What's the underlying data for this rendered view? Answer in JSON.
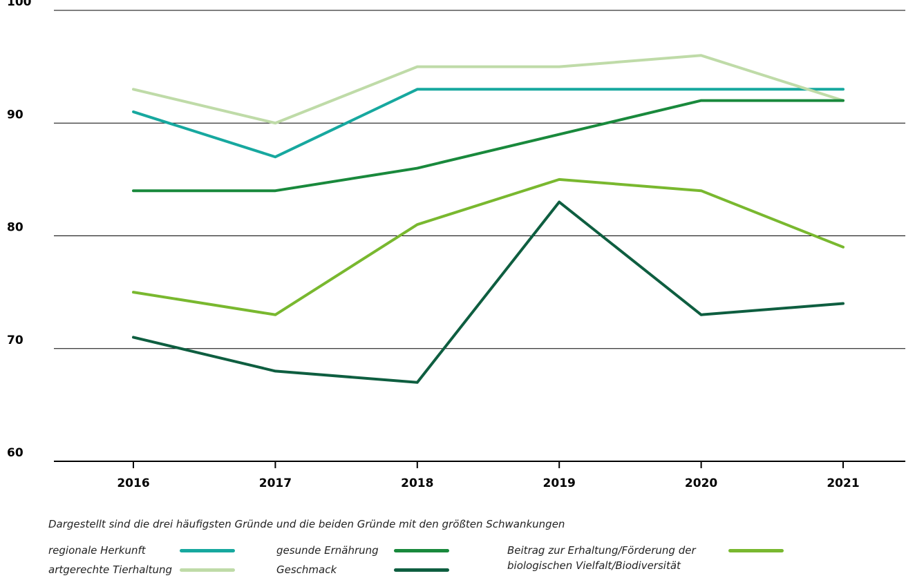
{
  "chart_data": {
    "type": "line",
    "categories": [
      "2016",
      "2017",
      "2018",
      "2019",
      "2020",
      "2021"
    ],
    "series": [
      {
        "name": "regionale Herkunft",
        "color": "#17a89f",
        "values": [
          91,
          87,
          93,
          93,
          93,
          93
        ]
      },
      {
        "name": "artgerechte Tierhaltung",
        "color": "#bfdba8",
        "values": [
          93,
          90,
          95,
          95,
          96,
          92
        ]
      },
      {
        "name": "gesunde Ernährung",
        "color": "#19893c",
        "values": [
          84,
          84,
          86,
          89,
          92,
          92
        ]
      },
      {
        "name": "Geschmack",
        "color": "#0e5e40",
        "values": [
          71,
          68,
          67,
          83,
          73,
          74
        ]
      },
      {
        "name": "Beitrag zur Erhaltung/Förderung der biologischen Vielfalt/Biodiversität",
        "color": "#79b82f",
        "values": [
          75,
          73,
          81,
          85,
          84,
          79
        ]
      }
    ],
    "ylim": [
      60,
      100
    ],
    "yticks": [
      60,
      70,
      80,
      90,
      100
    ],
    "grid": true,
    "note": "Dargestellt sind die drei häufigsten Gründe und die beiden Gründe mit den größten Schwankungen"
  }
}
